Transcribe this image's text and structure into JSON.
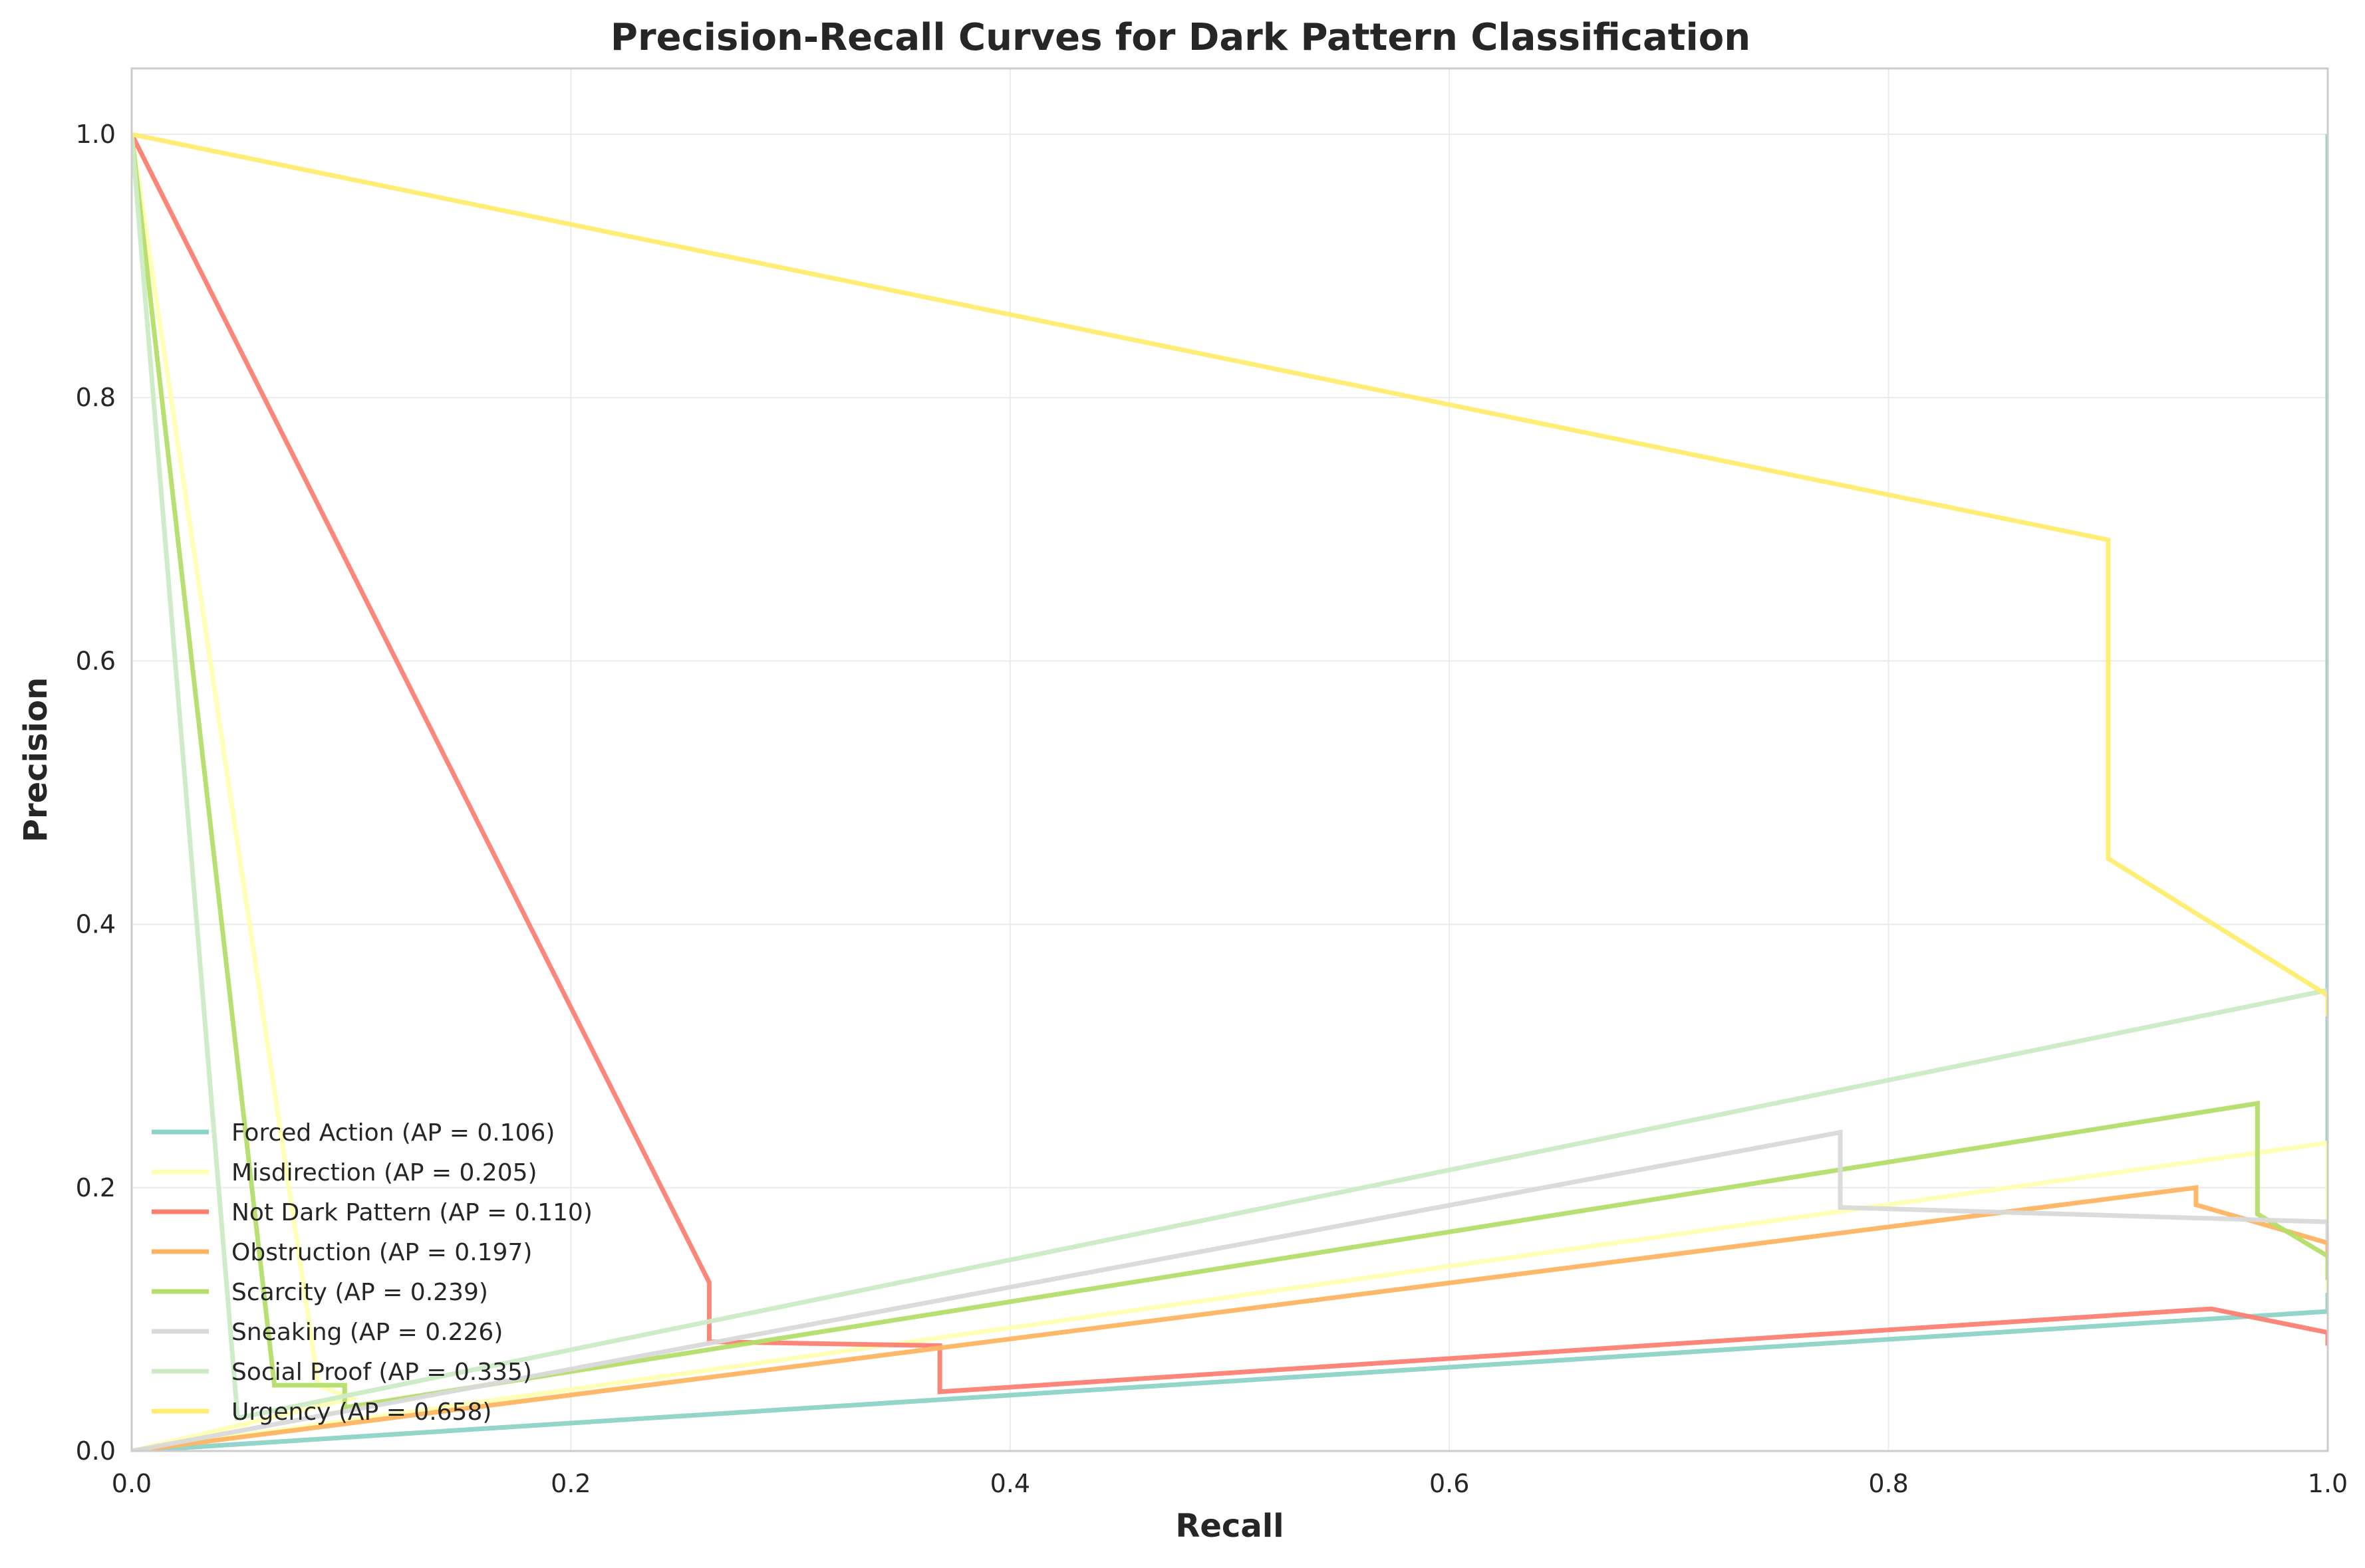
{
  "chart_data": {
    "type": "line",
    "title": "Precision-Recall Curves for Dark Pattern Classification",
    "xlabel": "Recall",
    "ylabel": "Precision",
    "xlim": [
      0,
      1
    ],
    "ylim": [
      0,
      1.05
    ],
    "x_ticks": [
      "0.0",
      "0.2",
      "0.4",
      "0.6",
      "0.8",
      "1.0"
    ],
    "y_ticks": [
      "0.0",
      "0.2",
      "0.4",
      "0.6",
      "0.8",
      "1.0"
    ],
    "grid": true,
    "legend_position": "lower-left",
    "series": [
      {
        "name": "Forced Action (AP = 0.106)",
        "color": "#8dd3c7",
        "points": [
          [
            0.0,
            0.0
          ],
          [
            1.0,
            0.106
          ],
          [
            1.0,
            1.0
          ]
        ]
      },
      {
        "name": "Misdirection (AP = 0.205)",
        "color": "#ffffb3",
        "points": [
          [
            0.0,
            1.0
          ],
          [
            0.085,
            0.05
          ],
          [
            0.1,
            0.04
          ],
          [
            0.0,
            0.0
          ],
          [
            1.0,
            0.234
          ],
          [
            1.0,
            0.12
          ]
        ]
      },
      {
        "name": "Not Dark Pattern (AP = 0.110)",
        "color": "#fb8072",
        "points": [
          [
            0.0,
            1.0
          ],
          [
            0.263,
            0.128
          ],
          [
            0.263,
            0.083
          ],
          [
            0.368,
            0.08
          ],
          [
            0.368,
            0.045
          ],
          [
            0.947,
            0.108
          ],
          [
            1.0,
            0.09
          ],
          [
            1.0,
            0.08
          ]
        ]
      },
      {
        "name": "Obstruction (AP = 0.197)",
        "color": "#fdb462",
        "points": [
          [
            0.0,
            0.0
          ],
          [
            0.94,
            0.2
          ],
          [
            0.94,
            0.187
          ],
          [
            1.0,
            0.158
          ],
          [
            1.0,
            0.15
          ]
        ]
      },
      {
        "name": "Scarcity (AP = 0.239)",
        "color": "#b3de69",
        "points": [
          [
            0.0,
            1.0
          ],
          [
            0.065,
            0.05
          ],
          [
            0.097,
            0.05
          ],
          [
            0.097,
            0.033
          ],
          [
            0.968,
            0.264
          ],
          [
            0.968,
            0.18
          ],
          [
            1.0,
            0.148
          ],
          [
            1.0,
            0.13
          ]
        ]
      },
      {
        "name": "Sneaking (AP = 0.226)",
        "color": "#d9d9d9",
        "points": [
          [
            0.0,
            0.0
          ],
          [
            0.778,
            0.242
          ],
          [
            0.778,
            0.185
          ],
          [
            1.0,
            0.174
          ],
          [
            1.0,
            0.16
          ]
        ]
      },
      {
        "name": "Social Proof (AP = 0.335)",
        "color": "#ccebc5",
        "points": [
          [
            0.0,
            1.0
          ],
          [
            0.048,
            0.03
          ],
          [
            0.048,
            0.025
          ],
          [
            1.0,
            0.35
          ],
          [
            1.0,
            0.34
          ]
        ]
      },
      {
        "name": "Urgency (AP = 0.658)",
        "color": "#ffed6f",
        "points": [
          [
            0.0,
            1.0
          ],
          [
            0.9,
            0.692
          ],
          [
            0.9,
            0.45
          ],
          [
            1.0,
            0.346
          ],
          [
            1.0,
            0.33
          ]
        ]
      }
    ]
  }
}
